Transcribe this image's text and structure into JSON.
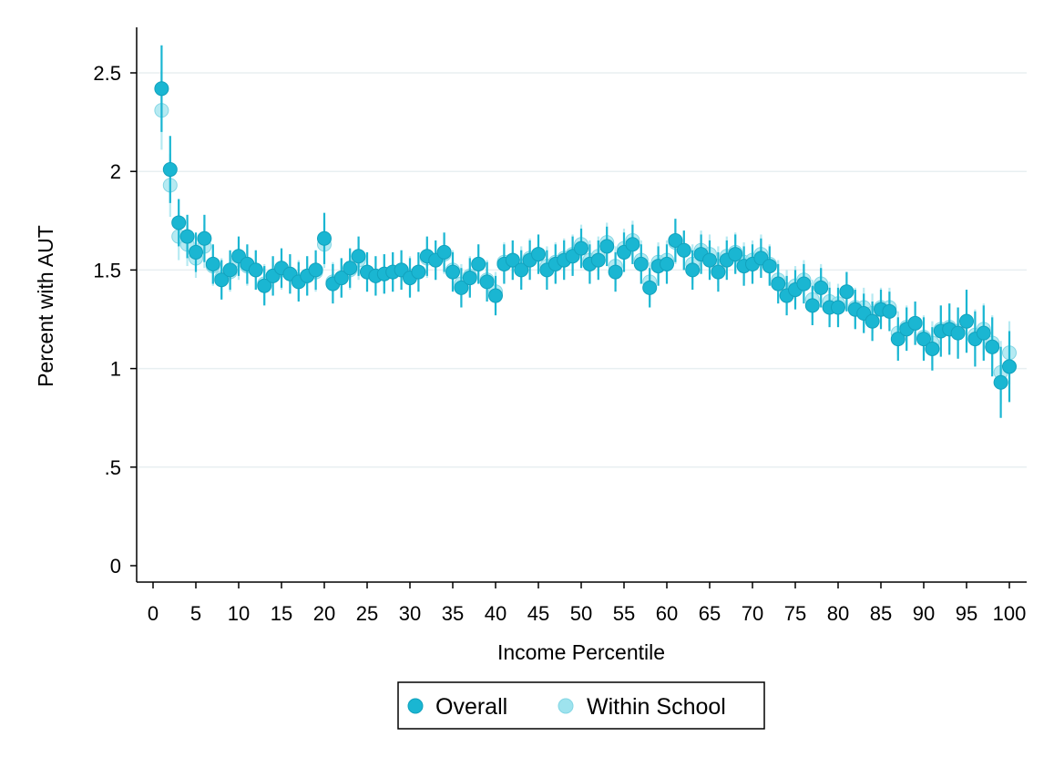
{
  "chart_data": {
    "type": "scatter",
    "title": "",
    "xlabel": "Income Percentile",
    "ylabel": "Percent with AUT",
    "xlim": [
      0,
      100
    ],
    "ylim": [
      0,
      2.5
    ],
    "xticks": [
      "0",
      "5",
      "10",
      "15",
      "20",
      "25",
      "30",
      "35",
      "40",
      "45",
      "50",
      "55",
      "60",
      "65",
      "70",
      "75",
      "80",
      "85",
      "90",
      "95",
      "100"
    ],
    "yticks": [
      "0",
      ".5",
      "1",
      "1.5",
      "2",
      "2.5"
    ],
    "grid": "horizontal",
    "legend_position": "bottom",
    "x": [
      1,
      2,
      3,
      4,
      5,
      6,
      7,
      8,
      9,
      10,
      11,
      12,
      13,
      14,
      15,
      16,
      17,
      18,
      19,
      20,
      21,
      22,
      23,
      24,
      25,
      26,
      27,
      28,
      29,
      30,
      31,
      32,
      33,
      34,
      35,
      36,
      37,
      38,
      39,
      40,
      41,
      42,
      43,
      44,
      45,
      46,
      47,
      48,
      49,
      50,
      51,
      52,
      53,
      54,
      55,
      56,
      57,
      58,
      59,
      60,
      61,
      62,
      63,
      64,
      65,
      66,
      67,
      68,
      69,
      70,
      71,
      72,
      73,
      74,
      75,
      76,
      77,
      78,
      79,
      80,
      81,
      82,
      83,
      84,
      85,
      86,
      87,
      88,
      89,
      90,
      91,
      92,
      93,
      94,
      95,
      96,
      97,
      98,
      99,
      100
    ],
    "series": [
      {
        "name": "Overall",
        "color": "#1ab6d2",
        "values": [
          2.42,
          2.01,
          1.74,
          1.67,
          1.59,
          1.66,
          1.53,
          1.45,
          1.5,
          1.57,
          1.53,
          1.5,
          1.42,
          1.47,
          1.51,
          1.48,
          1.44,
          1.47,
          1.5,
          1.66,
          1.43,
          1.46,
          1.51,
          1.57,
          1.49,
          1.47,
          1.48,
          1.49,
          1.5,
          1.46,
          1.49,
          1.57,
          1.55,
          1.59,
          1.49,
          1.41,
          1.46,
          1.53,
          1.44,
          1.37,
          1.53,
          1.55,
          1.5,
          1.55,
          1.58,
          1.5,
          1.53,
          1.55,
          1.57,
          1.61,
          1.53,
          1.55,
          1.62,
          1.49,
          1.59,
          1.63,
          1.53,
          1.41,
          1.52,
          1.53,
          1.65,
          1.6,
          1.5,
          1.58,
          1.55,
          1.49,
          1.55,
          1.58,
          1.52,
          1.53,
          1.56,
          1.52,
          1.43,
          1.37,
          1.4,
          1.43,
          1.32,
          1.41,
          1.31,
          1.31,
          1.39,
          1.3,
          1.28,
          1.24,
          1.3,
          1.29,
          1.15,
          1.2,
          1.23,
          1.15,
          1.1,
          1.19,
          1.2,
          1.18,
          1.24,
          1.15,
          1.18,
          1.11,
          0.93,
          1.01
        ],
        "ci_half": [
          0.22,
          0.17,
          0.12,
          0.11,
          0.1,
          0.12,
          0.1,
          0.1,
          0.1,
          0.1,
          0.1,
          0.1,
          0.1,
          0.1,
          0.1,
          0.1,
          0.1,
          0.1,
          0.1,
          0.13,
          0.1,
          0.1,
          0.1,
          0.1,
          0.1,
          0.1,
          0.1,
          0.1,
          0.1,
          0.1,
          0.1,
          0.1,
          0.1,
          0.1,
          0.1,
          0.1,
          0.1,
          0.1,
          0.1,
          0.1,
          0.1,
          0.1,
          0.1,
          0.1,
          0.1,
          0.1,
          0.1,
          0.1,
          0.1,
          0.1,
          0.1,
          0.1,
          0.1,
          0.1,
          0.1,
          0.1,
          0.1,
          0.1,
          0.1,
          0.1,
          0.11,
          0.1,
          0.1,
          0.1,
          0.1,
          0.1,
          0.1,
          0.1,
          0.1,
          0.1,
          0.1,
          0.1,
          0.1,
          0.1,
          0.1,
          0.1,
          0.1,
          0.1,
          0.1,
          0.1,
          0.1,
          0.1,
          0.1,
          0.1,
          0.1,
          0.1,
          0.11,
          0.11,
          0.11,
          0.11,
          0.11,
          0.13,
          0.13,
          0.13,
          0.16,
          0.14,
          0.14,
          0.15,
          0.18,
          0.18
        ]
      },
      {
        "name": "Within School",
        "color": "#9ee3ee",
        "values": [
          2.31,
          1.93,
          1.67,
          1.63,
          1.56,
          1.62,
          1.52,
          1.46,
          1.49,
          1.55,
          1.52,
          1.5,
          1.43,
          1.47,
          1.5,
          1.48,
          1.45,
          1.47,
          1.49,
          1.63,
          1.44,
          1.46,
          1.5,
          1.55,
          1.49,
          1.47,
          1.48,
          1.49,
          1.5,
          1.47,
          1.49,
          1.56,
          1.55,
          1.58,
          1.5,
          1.43,
          1.47,
          1.53,
          1.45,
          1.39,
          1.54,
          1.55,
          1.52,
          1.56,
          1.58,
          1.52,
          1.54,
          1.56,
          1.58,
          1.63,
          1.55,
          1.57,
          1.64,
          1.52,
          1.61,
          1.65,
          1.55,
          1.44,
          1.54,
          1.55,
          1.64,
          1.6,
          1.53,
          1.6,
          1.58,
          1.52,
          1.57,
          1.59,
          1.54,
          1.55,
          1.58,
          1.53,
          1.45,
          1.4,
          1.42,
          1.45,
          1.35,
          1.43,
          1.34,
          1.33,
          1.39,
          1.31,
          1.31,
          1.28,
          1.31,
          1.31,
          1.18,
          1.21,
          1.23,
          1.16,
          1.13,
          1.2,
          1.21,
          1.19,
          1.24,
          1.17,
          1.2,
          1.13,
          0.98,
          1.08
        ],
        "ci_half": [
          0.2,
          0.16,
          0.12,
          0.11,
          0.1,
          0.11,
          0.1,
          0.1,
          0.1,
          0.1,
          0.1,
          0.1,
          0.1,
          0.1,
          0.1,
          0.1,
          0.1,
          0.1,
          0.1,
          0.12,
          0.1,
          0.1,
          0.1,
          0.1,
          0.1,
          0.1,
          0.1,
          0.1,
          0.1,
          0.1,
          0.1,
          0.1,
          0.1,
          0.1,
          0.1,
          0.1,
          0.1,
          0.1,
          0.1,
          0.1,
          0.1,
          0.1,
          0.1,
          0.1,
          0.1,
          0.1,
          0.1,
          0.1,
          0.1,
          0.1,
          0.1,
          0.1,
          0.1,
          0.1,
          0.1,
          0.1,
          0.1,
          0.1,
          0.1,
          0.1,
          0.11,
          0.1,
          0.1,
          0.1,
          0.1,
          0.1,
          0.1,
          0.1,
          0.1,
          0.1,
          0.1,
          0.1,
          0.1,
          0.1,
          0.1,
          0.1,
          0.1,
          0.1,
          0.1,
          0.1,
          0.1,
          0.1,
          0.1,
          0.1,
          0.1,
          0.1,
          0.11,
          0.11,
          0.11,
          0.11,
          0.11,
          0.12,
          0.12,
          0.12,
          0.15,
          0.13,
          0.13,
          0.14,
          0.16,
          0.16
        ]
      }
    ]
  },
  "legend": {
    "items": [
      {
        "label": "Overall",
        "color": "#1ab6d2"
      },
      {
        "label": "Within School",
        "color": "#9ee3ee"
      }
    ]
  }
}
